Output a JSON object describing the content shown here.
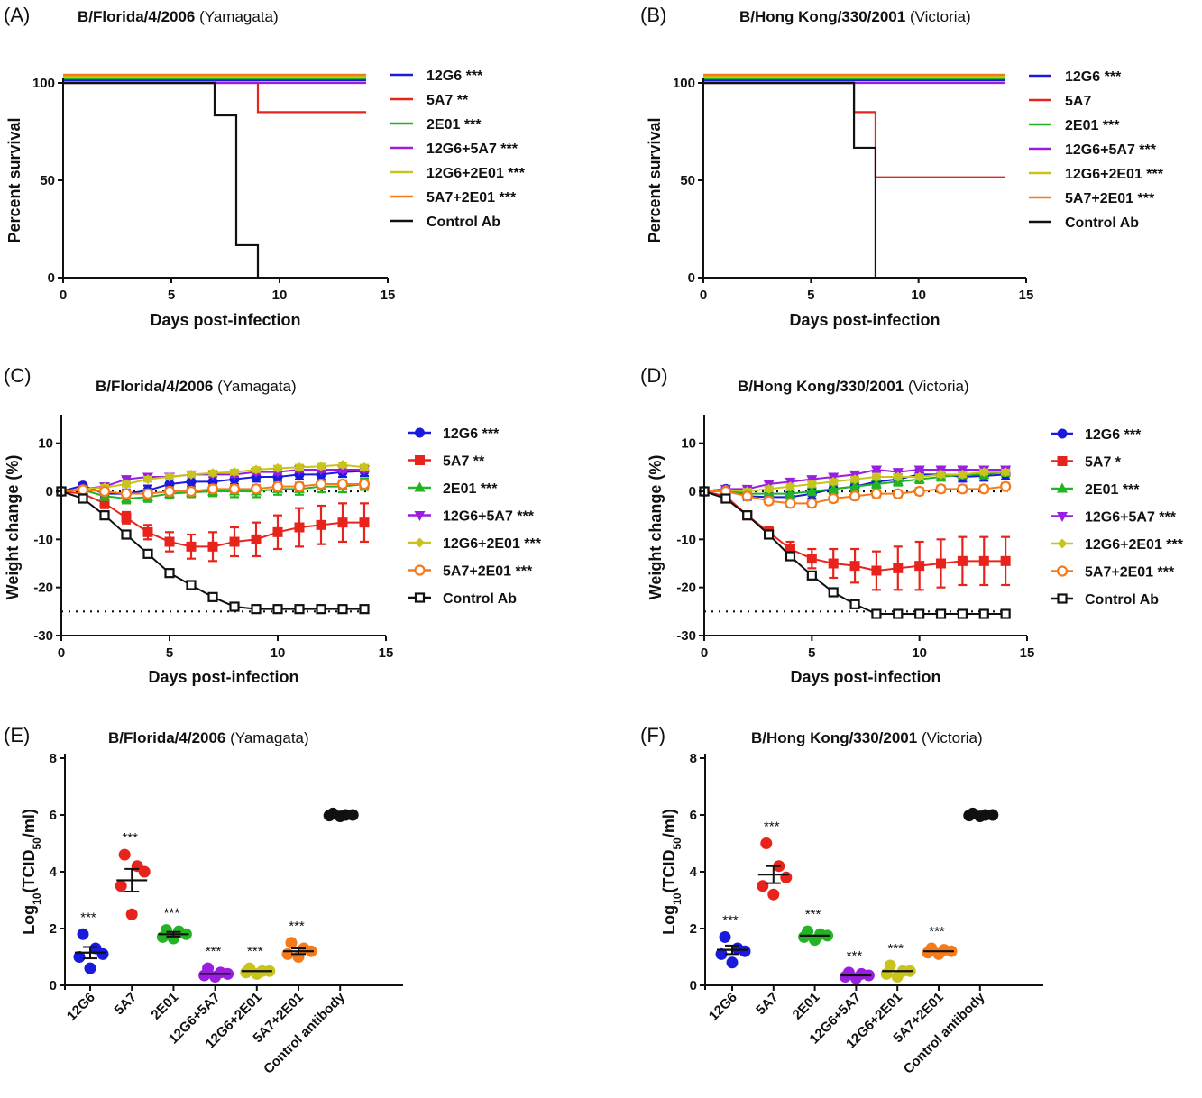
{
  "chart_data": [
    {
      "panel": "(A)",
      "type": "line",
      "subtype": "survival-step",
      "title": "B/Florida/4/2006",
      "subtitle": "(Yamagata)",
      "xlabel": "Days post-infection",
      "ylabel": "Percent survival",
      "xlim": [
        0,
        15
      ],
      "ylim": [
        0,
        100
      ],
      "xticks": [
        0,
        5,
        10,
        15
      ],
      "yticks": [
        0,
        50,
        100
      ],
      "legend_position": "right",
      "series": [
        {
          "name": "12G6 ***",
          "color": "#1a1adc",
          "points": [
            [
              0,
              100
            ],
            [
              14,
              100
            ]
          ]
        },
        {
          "name": "5A7 **",
          "color": "#e8231c",
          "points": [
            [
              0,
              100
            ],
            [
              9,
              100
            ],
            [
              9,
              85
            ],
            [
              14,
              85
            ]
          ]
        },
        {
          "name": "2E01 ***",
          "color": "#22b422",
          "points": [
            [
              0,
              100
            ],
            [
              14,
              100
            ]
          ]
        },
        {
          "name": "12G6+5A7 ***",
          "color": "#9a1ee0",
          "points": [
            [
              0,
              100
            ],
            [
              14,
              100
            ]
          ]
        },
        {
          "name": "12G6+2E01 ***",
          "color": "#c8c41c",
          "points": [
            [
              0,
              100
            ],
            [
              14,
              100
            ]
          ]
        },
        {
          "name": "5A7+2E01 ***",
          "color": "#f47a1c",
          "points": [
            [
              0,
              100
            ],
            [
              14,
              100
            ]
          ]
        },
        {
          "name": "Control Ab",
          "color": "#111111",
          "points": [
            [
              0,
              100
            ],
            [
              7,
              100
            ],
            [
              7,
              83.3
            ],
            [
              8,
              83.3
            ],
            [
              8,
              16.7
            ],
            [
              9,
              16.7
            ],
            [
              9,
              0
            ]
          ]
        }
      ]
    },
    {
      "panel": "(B)",
      "type": "line",
      "subtype": "survival-step",
      "title": "B/Hong Kong/330/2001",
      "subtitle": "(Victoria)",
      "xlabel": "Days post-infection",
      "ylabel": "Percent survival",
      "xlim": [
        0,
        15
      ],
      "ylim": [
        0,
        100
      ],
      "xticks": [
        0,
        5,
        10,
        15
      ],
      "yticks": [
        0,
        50,
        100
      ],
      "legend_position": "right",
      "series": [
        {
          "name": "12G6 ***",
          "color": "#1a1adc",
          "points": [
            [
              0,
              100
            ],
            [
              14,
              100
            ]
          ]
        },
        {
          "name": "5A7",
          "color": "#e8231c",
          "points": [
            [
              0,
              100
            ],
            [
              7,
              100
            ],
            [
              7,
              85
            ],
            [
              8,
              85
            ],
            [
              8,
              51.5
            ],
            [
              14,
              51.5
            ]
          ]
        },
        {
          "name": "2E01 ***",
          "color": "#22b422",
          "points": [
            [
              0,
              100
            ],
            [
              14,
              100
            ]
          ]
        },
        {
          "name": "12G6+5A7 ***",
          "color": "#9a1ee0",
          "points": [
            [
              0,
              100
            ],
            [
              14,
              100
            ]
          ]
        },
        {
          "name": "12G6+2E01 ***",
          "color": "#c8c41c",
          "points": [
            [
              0,
              100
            ],
            [
              14,
              100
            ]
          ]
        },
        {
          "name": "5A7+2E01 ***",
          "color": "#f47a1c",
          "points": [
            [
              0,
              100
            ],
            [
              14,
              100
            ]
          ]
        },
        {
          "name": "Control Ab",
          "color": "#111111",
          "points": [
            [
              0,
              100
            ],
            [
              7,
              100
            ],
            [
              7,
              66.7
            ],
            [
              8,
              66.7
            ],
            [
              8,
              0
            ]
          ]
        }
      ]
    },
    {
      "panel": "(C)",
      "type": "line",
      "subtype": "weight-change",
      "title": "B/Florida/4/2006",
      "subtitle": "(Yamagata)",
      "xlabel": "Days post-infection",
      "ylabel": "Weight change (%)",
      "xlim": [
        0,
        15
      ],
      "ylim": [
        -30,
        15
      ],
      "xticks": [
        0,
        5,
        10,
        15
      ],
      "yticks": [
        -30,
        -20,
        -10,
        0,
        10
      ],
      "reference_lines": [
        0,
        -25
      ],
      "legend_position": "right",
      "x": [
        0,
        1,
        2,
        3,
        4,
        5,
        6,
        7,
        8,
        9,
        10,
        11,
        12,
        13,
        14
      ],
      "series": [
        {
          "name": "12G6 ***",
          "color": "#1a1adc",
          "marker": "circle",
          "values": [
            0,
            1.2,
            -0.5,
            -0.5,
            0.2,
            1.5,
            2,
            2,
            2.5,
            3,
            3,
            3.5,
            3.5,
            4,
            4.2
          ],
          "errors": [
            0.3,
            0.5,
            0.8,
            0.9,
            1,
            1,
            1,
            1,
            1,
            1,
            1,
            1,
            1,
            1,
            1
          ]
        },
        {
          "name": "5A7 **",
          "color": "#e8231c",
          "marker": "square",
          "values": [
            0,
            -0.5,
            -2.5,
            -5.5,
            -8.5,
            -10.5,
            -11.5,
            -11.5,
            -10.5,
            -10,
            -8.5,
            -7.5,
            -7,
            -6.5,
            -6.5
          ],
          "errors": [
            0.3,
            0.5,
            1,
            1.2,
            1.5,
            2,
            2.5,
            3,
            3,
            3.5,
            3.5,
            4,
            4,
            4,
            4
          ]
        },
        {
          "name": "2E01 ***",
          "color": "#22b422",
          "marker": "triangle-up",
          "values": [
            0,
            0.3,
            -1,
            -1.5,
            -1.2,
            -0.5,
            -0.2,
            0,
            0,
            0,
            0.5,
            0.5,
            1,
            1,
            1.5
          ],
          "errors": [
            0.3,
            0.5,
            0.8,
            1,
            1,
            1,
            1,
            1,
            1.2,
            1.2,
            1.2,
            1.2,
            1.2,
            1.2,
            1.2
          ]
        },
        {
          "name": "12G6+5A7 ***",
          "color": "#9a1ee0",
          "marker": "triangle-down",
          "values": [
            0,
            0.5,
            1,
            2.5,
            3,
            3,
            3.5,
            3.5,
            3.5,
            4,
            4,
            4.5,
            4.5,
            4.5,
            4.5
          ],
          "errors": [
            0.3,
            0.4,
            0.5,
            0.5,
            0.5,
            0.5,
            0.5,
            0.5,
            0.5,
            0.5,
            0.5,
            0.5,
            0.5,
            0.5,
            0.5
          ]
        },
        {
          "name": "12G6+2E01 ***",
          "color": "#c8c41c",
          "marker": "diamond",
          "values": [
            0,
            0.5,
            0.8,
            1.5,
            2.5,
            3,
            3.5,
            3.8,
            4,
            4.5,
            4.8,
            5,
            5.2,
            5.5,
            5
          ],
          "errors": [
            0.3,
            0.4,
            0.5,
            0.5,
            0.5,
            0.5,
            0.5,
            0.5,
            0.5,
            0.5,
            0.5,
            0.5,
            0.5,
            0.5,
            0.5
          ]
        },
        {
          "name": "5A7+2E01 ***",
          "color": "#f47a1c",
          "marker": "circle-open",
          "values": [
            0,
            0.3,
            0,
            -0.5,
            -0.5,
            0,
            0,
            0.5,
            0.5,
            0.5,
            1,
            1,
            1.5,
            1.5,
            1.5
          ],
          "errors": [
            0.3,
            0.4,
            0.6,
            0.8,
            0.8,
            0.8,
            0.8,
            0.8,
            0.8,
            0.8,
            0.8,
            0.8,
            0.8,
            0.8,
            0.8
          ]
        },
        {
          "name": "Control Ab",
          "color": "#111111",
          "marker": "square-open",
          "values": [
            0,
            -1.5,
            -5,
            -9,
            -13,
            -17,
            -19.5,
            -22,
            -24,
            -24.5,
            -24.5,
            -24.5,
            -24.5,
            -24.5,
            -24.5
          ],
          "errors": [
            0.2,
            0.3,
            0.4,
            0.5,
            0.5,
            0.5,
            0.5,
            0.5,
            0.5,
            0.3,
            0.3,
            0.3,
            0.3,
            0.3,
            0.3
          ]
        }
      ]
    },
    {
      "panel": "(D)",
      "type": "line",
      "subtype": "weight-change",
      "title": "B/Hong Kong/330/2001",
      "subtitle": "(Victoria)",
      "xlabel": "Days post-infection",
      "ylabel": "Weight change (%)",
      "xlim": [
        0,
        15
      ],
      "ylim": [
        -30,
        15
      ],
      "xticks": [
        0,
        5,
        10,
        15
      ],
      "yticks": [
        -30,
        -20,
        -10,
        0,
        10
      ],
      "reference_lines": [
        0,
        -25
      ],
      "legend_position": "right",
      "x": [
        0,
        1,
        2,
        3,
        4,
        5,
        6,
        7,
        8,
        9,
        10,
        11,
        12,
        13,
        14
      ],
      "series": [
        {
          "name": "12G6 ***",
          "color": "#1a1adc",
          "marker": "circle",
          "values": [
            0,
            0.5,
            -1,
            -1.2,
            -1.2,
            -0.5,
            0.5,
            1,
            2,
            2.5,
            3.5,
            3.5,
            3,
            3.2,
            3.5
          ],
          "errors": [
            0.3,
            0.5,
            0.8,
            1,
            1,
            1,
            1,
            1,
            1,
            1,
            1,
            1,
            1,
            1,
            1
          ]
        },
        {
          "name": "5A7 *",
          "color": "#e8231c",
          "marker": "square",
          "values": [
            0,
            -1,
            -5,
            -8.5,
            -12,
            -14,
            -15,
            -15.5,
            -16.5,
            -16,
            -15.5,
            -15,
            -14.5,
            -14.5,
            -14.5
          ],
          "errors": [
            0.3,
            0.5,
            0.8,
            1,
            1.5,
            2,
            3,
            3.5,
            4,
            4.5,
            5,
            5,
            5,
            5,
            5
          ]
        },
        {
          "name": "2E01 ***",
          "color": "#22b422",
          "marker": "triangle-up",
          "values": [
            0,
            0.2,
            -0.5,
            -0.5,
            -0.5,
            0,
            0.5,
            1,
            1.5,
            2,
            2.5,
            3,
            3.5,
            3.5,
            4
          ],
          "errors": [
            0.3,
            0.4,
            0.6,
            0.8,
            0.8,
            0.8,
            0.8,
            0.8,
            0.8,
            0.8,
            0.8,
            0.8,
            0.8,
            0.8,
            0.8
          ]
        },
        {
          "name": "12G6+5A7 ***",
          "color": "#9a1ee0",
          "marker": "triangle-down",
          "values": [
            0,
            0.5,
            0.5,
            1.5,
            2,
            2.5,
            3,
            3.5,
            4.5,
            4,
            4.5,
            4.5,
            4.5,
            4.5,
            4.5
          ],
          "errors": [
            0.3,
            0.4,
            0.5,
            0.5,
            0.5,
            0.5,
            0.5,
            0.5,
            0.5,
            0.5,
            0.5,
            0.5,
            0.5,
            0.5,
            0.5
          ]
        },
        {
          "name": "12G6+2E01 ***",
          "color": "#c8c41c",
          "marker": "diamond",
          "values": [
            0,
            0.3,
            0,
            0.5,
            1,
            1.5,
            2,
            2.5,
            3,
            3,
            3,
            3.5,
            3.5,
            4,
            4
          ],
          "errors": [
            0.3,
            0.4,
            0.5,
            0.5,
            0.5,
            0.5,
            0.5,
            0.5,
            0.5,
            0.5,
            0.5,
            0.5,
            0.5,
            0.5,
            0.5
          ]
        },
        {
          "name": "5A7+2E01 ***",
          "color": "#f47a1c",
          "marker": "circle-open",
          "values": [
            0,
            0,
            -1,
            -2,
            -2.5,
            -2.5,
            -1.5,
            -1,
            -0.5,
            -0.5,
            0,
            0.5,
            0.5,
            0.5,
            1
          ],
          "errors": [
            0.3,
            0.4,
            0.6,
            0.7,
            0.7,
            0.7,
            0.7,
            0.7,
            0.7,
            0.7,
            0.7,
            0.7,
            0.7,
            0.7,
            0.7
          ]
        },
        {
          "name": "Control Ab",
          "color": "#111111",
          "marker": "square-open",
          "values": [
            0,
            -1.5,
            -5,
            -9,
            -13.5,
            -17.5,
            -21,
            -23.5,
            -25.5,
            -25.5,
            -25.5,
            -25.5,
            -25.5,
            -25.5,
            -25.5
          ],
          "errors": [
            0.2,
            0.3,
            0.4,
            0.5,
            0.5,
            0.5,
            0.5,
            0.5,
            0.5,
            0.3,
            0.3,
            0.3,
            0.3,
            0.3,
            0.3
          ]
        }
      ]
    },
    {
      "panel": "(E)",
      "type": "scatter",
      "subtype": "dot-plot",
      "title": "B/Florida/4/2006",
      "subtitle": "(Yamagata)",
      "ylabel": "Log10(TCID50/ml)",
      "ylim": [
        0,
        8
      ],
      "yticks": [
        0,
        2,
        4,
        6,
        8
      ],
      "categories": [
        "12G6",
        "5A7",
        "2E01",
        "12G6+5A7",
        "12G6+2E01",
        "5A7+2E01",
        "Control antibody"
      ],
      "significance": [
        "***",
        "***",
        "***",
        "***",
        "***",
        "***",
        ""
      ],
      "colors": [
        "#1a1adc",
        "#e8231c",
        "#22b422",
        "#9a1ee0",
        "#c8c41c",
        "#f47a1c",
        "#111111"
      ],
      "means": [
        1.15,
        3.7,
        1.8,
        0.4,
        0.5,
        1.2,
        6.0
      ],
      "sems": [
        0.2,
        0.4,
        0.08,
        0.05,
        0.05,
        0.1,
        0.03
      ],
      "points": [
        [
          1.8,
          1.3,
          1.1,
          1.0,
          0.6
        ],
        [
          4.6,
          4.2,
          4.0,
          3.5,
          2.5
        ],
        [
          1.95,
          1.9,
          1.8,
          1.7,
          1.65
        ],
        [
          0.6,
          0.45,
          0.4,
          0.35,
          0.3
        ],
        [
          0.6,
          0.5,
          0.5,
          0.45,
          0.4
        ],
        [
          1.5,
          1.3,
          1.2,
          1.1,
          1.0
        ],
        [
          6.05,
          6.0,
          6.0,
          5.98,
          5.95
        ]
      ]
    },
    {
      "panel": "(F)",
      "type": "scatter",
      "subtype": "dot-plot",
      "title": "B/Hong Kong/330/2001",
      "subtitle": "(Victoria)",
      "ylabel": "Log10(TCID50/ml)",
      "ylim": [
        0,
        8
      ],
      "yticks": [
        0,
        2,
        4,
        6,
        8
      ],
      "categories": [
        "12G6",
        "5A7",
        "2E01",
        "12G6+5A7",
        "12G6+2E01",
        "5A7+2E01",
        "Control antibody"
      ],
      "significance": [
        "***",
        "***",
        "***",
        "***",
        "***",
        "***",
        ""
      ],
      "colors": [
        "#1a1adc",
        "#e8231c",
        "#22b422",
        "#9a1ee0",
        "#c8c41c",
        "#f47a1c",
        "#111111"
      ],
      "means": [
        1.25,
        3.9,
        1.75,
        0.35,
        0.5,
        1.2,
        6.0
      ],
      "sems": [
        0.15,
        0.3,
        0.05,
        0.05,
        0.05,
        0.05,
        0.03
      ],
      "points": [
        [
          1.7,
          1.3,
          1.2,
          1.1,
          0.8
        ],
        [
          5.0,
          4.2,
          3.8,
          3.5,
          3.2
        ],
        [
          1.9,
          1.8,
          1.75,
          1.7,
          1.6
        ],
        [
          0.45,
          0.4,
          0.35,
          0.3,
          0.25
        ],
        [
          0.7,
          0.5,
          0.5,
          0.4,
          0.3
        ],
        [
          1.3,
          1.25,
          1.2,
          1.15,
          1.1
        ],
        [
          6.05,
          6.0,
          6.0,
          5.98,
          5.95
        ]
      ]
    }
  ]
}
